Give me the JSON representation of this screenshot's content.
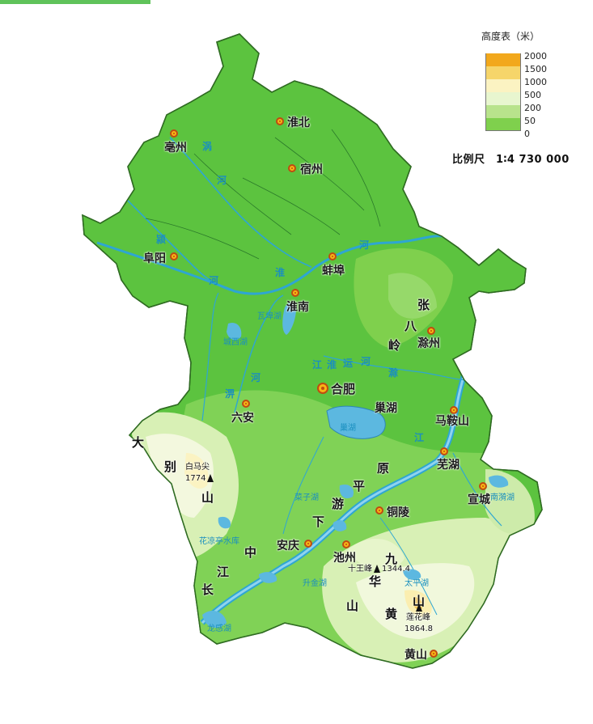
{
  "legend": {
    "title": "高度表（米）",
    "levels": [
      {
        "value": "2000",
        "color": "#f2a81c"
      },
      {
        "value": "1500",
        "color": "#f6d56a"
      },
      {
        "value": "1000",
        "color": "#fbf3c2"
      },
      {
        "value": "500",
        "color": "#e8f6cf"
      },
      {
        "value": "200",
        "color": "#b8e38c"
      },
      {
        "value": "50",
        "color": "#7fd04d"
      },
      {
        "value": "0",
        "color": "#58c03a"
      }
    ]
  },
  "scale": "比例尺　1∶4 730 000",
  "cities": {
    "huaibei": "淮北",
    "bozhou": "亳州",
    "suzhou": "宿州",
    "fuyang": "阜阳",
    "bengbu": "蚌埠",
    "huainan": "淮南",
    "chuzhou": "滁州",
    "hefei": "合肥",
    "liuan": "六安",
    "chaohu": "巢湖",
    "maanshan": "马鞍山",
    "wuhu": "芜湖",
    "tongling": "铜陵",
    "xuancheng": "宣城",
    "anqing": "安庆",
    "chizhou": "池州",
    "huangshan": "黄山"
  },
  "rivers": {
    "wo1": "涡",
    "wo2": "河",
    "ying1": "颍",
    "ying2": "河",
    "huai1": "河",
    "huai2": "淮",
    "pi1": "淠",
    "pi2": "河",
    "shi1": "史",
    "shi2": "河",
    "canal1": "江",
    "canal2": "淮",
    "canal3": "运",
    "canal4": "河",
    "canal5": "滁",
    "changjiang_a": "长",
    "changjiang_b": "江",
    "changjiang_c": "中",
    "changjiang_d": "下",
    "jiang_e": "江",
    "jiang_f": "游",
    "jiang_g": "平",
    "jiang_h": "原"
  },
  "lakes": {
    "wabuhu": "瓦埠湖",
    "chengxihu": "城西湖",
    "chaohu_lake": "巢湖",
    "caizihu": "菜子湖",
    "huayanghu": "花凉亭水库",
    "shengjinhu": "升金湖",
    "taipinghu": "太平湖",
    "nanyihu": "南漪湖",
    "longganhu": "龙感湖"
  },
  "terrain": {
    "zhang": "张",
    "ba": "八",
    "ling": "岭",
    "da": "大",
    "bie": "别",
    "shan1": "山",
    "jiu": "九",
    "hua": "华",
    "shan2": "山",
    "huang": "黄",
    "shan3": "山"
  },
  "peaks": {
    "baimajian_name": "白马尖",
    "baimajian_elev": "1774",
    "shiwangfeng_name": "十王峰",
    "shiwangfeng_elev": "1344.4",
    "lianhuafeng_name": "莲花峰",
    "lianhuafeng_elev": "1864.8"
  }
}
